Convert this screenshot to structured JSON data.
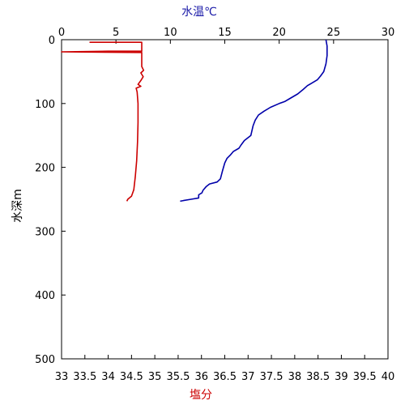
{
  "chart_data": {
    "type": "line",
    "top_axis": {
      "label": "水温℃",
      "ticks": [
        0,
        5,
        10,
        15,
        20,
        25,
        30
      ],
      "range": [
        0,
        30
      ],
      "color": "#1a1aa8"
    },
    "bottom_axis": {
      "label": "塩分",
      "ticks": [
        "33",
        "33.5",
        "34",
        "34.5",
        "35",
        "35.5",
        "36",
        "36.5",
        "37",
        "37.5",
        "38",
        "38.5",
        "39",
        "39.5",
        "40"
      ],
      "range": [
        33,
        40
      ],
      "color": "#cc0000"
    },
    "y_axis": {
      "label": "水深m",
      "ticks": [
        0,
        100,
        200,
        300,
        400,
        500
      ],
      "range": [
        0,
        500
      ],
      "inverted": true
    },
    "grid": false,
    "series": [
      {
        "axis": "top",
        "color": "#0000aa",
        "points": [
          [
            24.3,
            0
          ],
          [
            24.4,
            10
          ],
          [
            24.4,
            25
          ],
          [
            24.3,
            38
          ],
          [
            24.1,
            50
          ],
          [
            23.8,
            57
          ],
          [
            23.5,
            63
          ],
          [
            23.0,
            68
          ],
          [
            22.6,
            72
          ],
          [
            22.2,
            78
          ],
          [
            21.7,
            85
          ],
          [
            21.0,
            92
          ],
          [
            20.5,
            97
          ],
          [
            20.0,
            100
          ],
          [
            19.2,
            106
          ],
          [
            18.6,
            112
          ],
          [
            18.1,
            118
          ],
          [
            17.8,
            126
          ],
          [
            17.6,
            135
          ],
          [
            17.4,
            150
          ],
          [
            16.8,
            158
          ],
          [
            16.5,
            165
          ],
          [
            16.3,
            170
          ],
          [
            15.8,
            175
          ],
          [
            15.5,
            181
          ],
          [
            15.2,
            186
          ],
          [
            15.0,
            193
          ],
          [
            14.8,
            205
          ],
          [
            14.6,
            218
          ],
          [
            14.3,
            223
          ],
          [
            13.6,
            226
          ],
          [
            13.3,
            230
          ],
          [
            13.0,
            236
          ],
          [
            12.9,
            240
          ],
          [
            12.6,
            243
          ],
          [
            12.6,
            248
          ],
          [
            11.9,
            250
          ],
          [
            11.2,
            252
          ],
          [
            10.9,
            253
          ]
        ]
      },
      {
        "axis": "bottom",
        "color": "#cc0000",
        "points": [
          [
            33.6,
            4
          ],
          [
            34.72,
            4
          ],
          [
            34.72,
            18
          ],
          [
            34.0,
            18
          ],
          [
            33.0,
            19
          ],
          [
            34.72,
            20
          ],
          [
            34.72,
            42
          ],
          [
            34.76,
            48
          ],
          [
            34.7,
            52
          ],
          [
            34.75,
            58
          ],
          [
            34.7,
            64
          ],
          [
            34.64,
            70
          ],
          [
            34.7,
            73
          ],
          [
            34.6,
            76
          ],
          [
            34.62,
            82
          ],
          [
            34.64,
            100
          ],
          [
            34.64,
            130
          ],
          [
            34.63,
            160
          ],
          [
            34.61,
            190
          ],
          [
            34.58,
            215
          ],
          [
            34.55,
            235
          ],
          [
            34.5,
            245
          ],
          [
            34.42,
            250
          ],
          [
            34.4,
            253
          ]
        ]
      }
    ]
  }
}
